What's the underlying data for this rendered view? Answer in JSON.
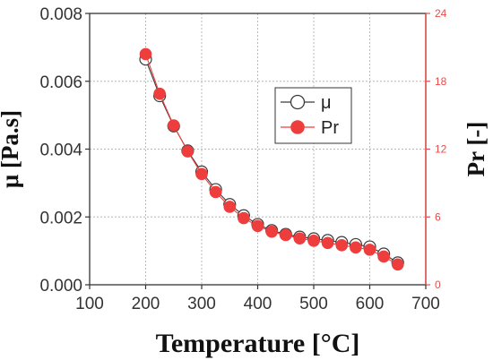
{
  "chart_data": {
    "type": "line",
    "xlabel": "Temperature [°C]",
    "ylabel_left": "μ [Pa.s]",
    "ylabel_right": "Pr [-]",
    "xlim": [
      100,
      700
    ],
    "xticks": [
      "100",
      "200",
      "300",
      "400",
      "500",
      "600",
      "700"
    ],
    "ylim_left": [
      0,
      0.008
    ],
    "yticks_left": [
      "0.000",
      "0.002",
      "0.004",
      "0.006",
      "0.008"
    ],
    "ylim_right": [
      0,
      24
    ],
    "yticks_right": [
      "0",
      "6",
      "12",
      "18",
      "24"
    ],
    "grid": true,
    "legend_position": "center-right",
    "x": [
      200,
      225,
      250,
      275,
      300,
      325,
      350,
      375,
      400,
      425,
      450,
      475,
      500,
      525,
      550,
      575,
      600,
      625,
      650
    ],
    "series": [
      {
        "name": "μ",
        "axis": "left",
        "marker": "open-circle",
        "values": [
          0.00665,
          0.00557,
          0.00468,
          0.00395,
          0.00333,
          0.00281,
          0.00237,
          0.00204,
          0.00178,
          0.0016,
          0.00149,
          0.00141,
          0.00136,
          0.00131,
          0.00125,
          0.00119,
          0.00112,
          0.00091,
          0.00065
        ]
      },
      {
        "name": "Pr",
        "axis": "right",
        "marker": "filled-circle",
        "values": [
          20.4,
          16.9,
          14.1,
          11.8,
          9.8,
          8.2,
          6.9,
          5.9,
          5.2,
          4.7,
          4.4,
          4.1,
          3.9,
          3.7,
          3.5,
          3.3,
          3.1,
          2.5,
          1.8
        ]
      }
    ]
  },
  "colors": {
    "mu_series": "#3a3a3a",
    "pr_series": "#ee3d3d",
    "right_axis": "#e74c4c",
    "grid": "#b5b5b5",
    "axis": "#333333"
  }
}
